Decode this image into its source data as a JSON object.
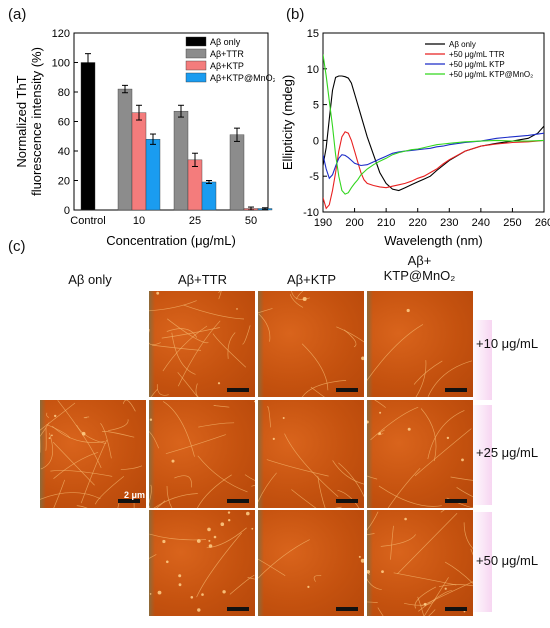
{
  "panels": {
    "a": "(a)",
    "b": "(b)",
    "c": "(c)"
  },
  "chart_data": [
    {
      "type": "bar",
      "ylabel_line1": "Normalized ThT",
      "ylabel_line2": "fluorescence intensity (%)",
      "xlabel": "Concentration (μg/mL)",
      "ylim": [
        0,
        120
      ],
      "yticks": [
        0,
        20,
        40,
        60,
        80,
        100,
        120
      ],
      "groups": [
        "Control",
        "10",
        "25",
        "50"
      ],
      "series": [
        {
          "name": "Aβ only",
          "color": "#000000",
          "values": [
            100,
            null,
            null,
            null
          ],
          "errors": [
            6,
            null,
            null,
            null
          ]
        },
        {
          "name": "Aβ+TTR",
          "color": "#8c8c8c",
          "values": [
            null,
            82,
            67,
            51
          ],
          "errors": [
            null,
            2.5,
            4,
            4.5
          ]
        },
        {
          "name": "Aβ+KTP",
          "color": "#f47c7c",
          "values": [
            null,
            66,
            34,
            1
          ],
          "errors": [
            null,
            5,
            4.5,
            1
          ]
        },
        {
          "name": "Aβ+KTP@MnO₂",
          "color": "#1a9cf0",
          "values": [
            null,
            48,
            19,
            1
          ],
          "errors": [
            null,
            3.5,
            1,
            0.5
          ]
        }
      ]
    },
    {
      "type": "line",
      "xlabel": "Wavelength (nm)",
      "ylabel": "Ellipticity (mdeg)",
      "xlim": [
        190,
        260
      ],
      "ylim": [
        -10,
        15
      ],
      "xticks": [
        190,
        200,
        210,
        220,
        230,
        240,
        250,
        260
      ],
      "yticks": [
        -10,
        -5,
        0,
        5,
        10,
        15
      ],
      "series": [
        {
          "name": "Aβ only",
          "color": "#000000",
          "x": [
            190,
            191,
            192,
            193,
            194,
            195,
            196,
            197,
            198,
            199,
            200,
            202,
            204,
            206,
            208,
            210,
            212,
            214,
            216,
            218,
            220,
            222,
            224,
            226,
            228,
            230,
            235,
            240,
            245,
            250,
            255,
            258,
            260
          ],
          "y": [
            -3.5,
            -1,
            3,
            7,
            8.8,
            9,
            9,
            8.9,
            8.7,
            8,
            6.5,
            3.5,
            0.5,
            -2,
            -4.5,
            -6,
            -6.8,
            -7,
            -6.6,
            -6.2,
            -5.8,
            -5.4,
            -5,
            -4.2,
            -3.5,
            -2.8,
            -1.5,
            -0.8,
            -0.4,
            -0.1,
            0.3,
            1,
            2
          ]
        },
        {
          "name": "+50 μg/mL TTR",
          "color": "#e82020",
          "x": [
            190,
            191,
            192,
            193,
            194,
            195,
            196,
            197,
            198,
            199,
            200,
            201,
            202,
            203,
            204,
            206,
            208,
            210,
            212,
            214,
            216,
            218,
            220,
            222,
            224,
            226,
            228,
            230,
            235,
            240,
            245,
            250,
            255,
            260
          ],
          "y": [
            -8,
            -9.5,
            -9,
            -7,
            -4.5,
            -1.5,
            0.5,
            1.2,
            1,
            0,
            -1.5,
            -3,
            -4.5,
            -5.5,
            -6,
            -6.3,
            -6.5,
            -6.6,
            -6.4,
            -6.2,
            -6,
            -5.7,
            -5.3,
            -5,
            -4.5,
            -4,
            -3.3,
            -2.7,
            -1.5,
            -0.8,
            -0.5,
            -0.3,
            -0.2,
            0
          ]
        },
        {
          "name": "+50 μg/mL KTP",
          "color": "#1c2cc8",
          "x": [
            190,
            191,
            192,
            193,
            194,
            195,
            196,
            197,
            198,
            199,
            200,
            202,
            204,
            206,
            208,
            210,
            212,
            214,
            216,
            218,
            220,
            222,
            224,
            226,
            228,
            230,
            235,
            240,
            245,
            250,
            255,
            260
          ],
          "y": [
            -2,
            -4,
            -5.3,
            -4.8,
            -3.6,
            -2.5,
            -2,
            -2.1,
            -2.4,
            -2.8,
            -3.2,
            -3.5,
            -3.4,
            -3,
            -2.6,
            -2.2,
            -1.8,
            -1.6,
            -1.5,
            -1.4,
            -1.3,
            -1.2,
            -1.1,
            -0.9,
            -0.8,
            -0.6,
            -0.3,
            -0.1,
            0.3,
            0.5,
            0.7,
            1
          ]
        },
        {
          "name": "+50 μg/mL KTP@MnO₂",
          "color": "#33d61f",
          "x": [
            190,
            191,
            192,
            193,
            194,
            195,
            196,
            197,
            198,
            199,
            200,
            201,
            202,
            204,
            206,
            208,
            210,
            212,
            214,
            216,
            218,
            220,
            222,
            224,
            226,
            228,
            230,
            235,
            240,
            245,
            250,
            255,
            260
          ],
          "y": [
            12,
            9,
            5.5,
            2,
            -2,
            -5,
            -7,
            -7.5,
            -7.3,
            -6.6,
            -6,
            -5.5,
            -4.8,
            -4,
            -3.4,
            -2.9,
            -2.5,
            -2,
            -1.7,
            -1.5,
            -1.3,
            -1.2,
            -1,
            -0.8,
            -0.6,
            -0.5,
            -0.4,
            -0.2,
            -0.1,
            0,
            -0.1,
            -0.1,
            0
          ]
        }
      ]
    }
  ],
  "afm": {
    "columns": [
      "Aβ only",
      "Aβ+TTR",
      "Aβ+KTP",
      "Aβ+",
      "KTP@MnO₂"
    ],
    "rows": [
      "+10 μg/mL",
      "+25 μg/mL",
      "+50 μg/mL"
    ],
    "scale_label": "2 μm"
  }
}
